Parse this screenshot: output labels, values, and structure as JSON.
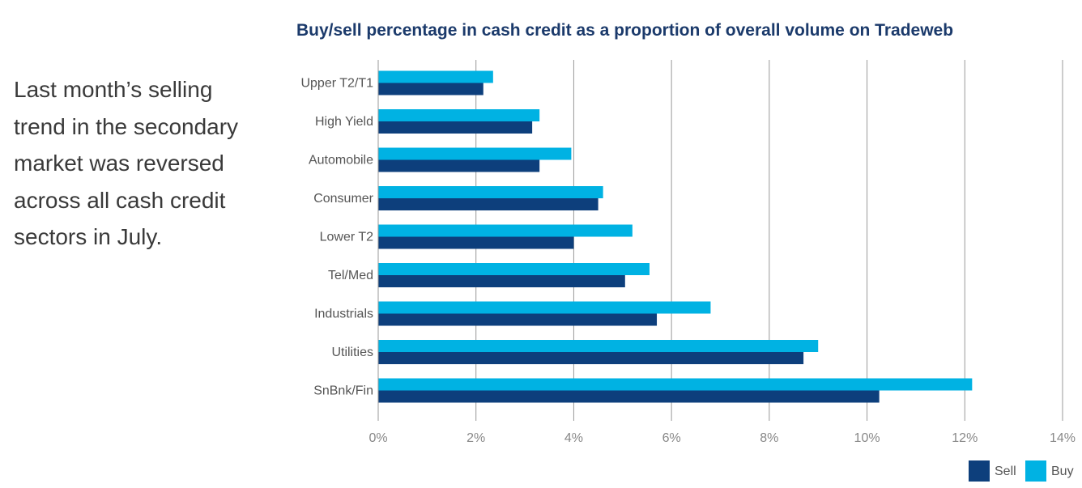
{
  "commentary": {
    "lines": [
      "Last month’s selling",
      "trend in the secondary",
      "market was reversed",
      "across all cash credit",
      "sectors in July."
    ]
  },
  "colors": {
    "sell": "#0d3f7c",
    "buy": "#00b2e3",
    "grid": "#999999"
  },
  "chart_data": {
    "type": "bar",
    "orientation": "horizontal",
    "title": "Buy/sell percentage in cash credit as a proportion of overall volume on Tradeweb",
    "xlabel": "",
    "ylabel": "",
    "categories": [
      "Upper T2/T1",
      "High Yield",
      "Automobile",
      "Consumer",
      "Lower T2",
      "Tel/Med",
      "Industrials",
      "Utilities",
      "SnBnk/Fin"
    ],
    "series": [
      {
        "name": "Buy",
        "values": [
          2.35,
          3.3,
          3.95,
          4.6,
          5.2,
          5.55,
          6.8,
          9.0,
          12.15
        ]
      },
      {
        "name": "Sell",
        "values": [
          2.15,
          3.15,
          3.3,
          4.5,
          4.0,
          5.05,
          5.7,
          8.7,
          10.25
        ]
      }
    ],
    "xlim": [
      0,
      14
    ],
    "xticks": [
      "0%",
      "2%",
      "4%",
      "6%",
      "8%",
      "10%",
      "12%",
      "14%"
    ],
    "grid": "vertical",
    "legend": {
      "position": "bottom-right",
      "entries": [
        "Sell",
        "Buy"
      ]
    }
  }
}
